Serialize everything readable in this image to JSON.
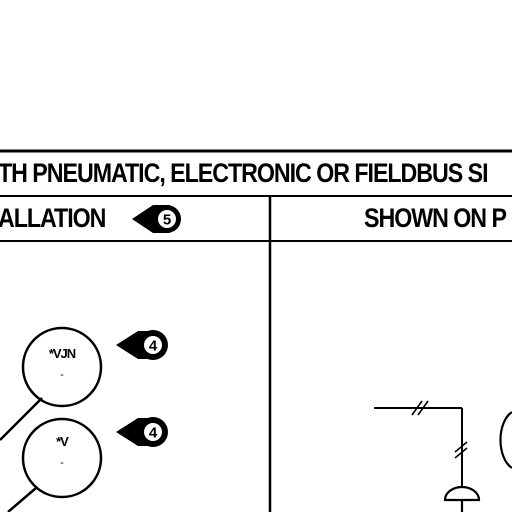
{
  "header": {
    "title": "TH PNEUMATIC, ELECTRONIC OR FIELDBUS SI",
    "left_column": "ALLATION",
    "right_column": "SHOWN ON P"
  },
  "diagram": {
    "left_callout_number": "5",
    "instruments": [
      {
        "tag": "*VJN",
        "detail": "-",
        "callout_number": "4"
      },
      {
        "tag": "*V",
        "detail": "-",
        "callout_number": "4"
      }
    ]
  }
}
